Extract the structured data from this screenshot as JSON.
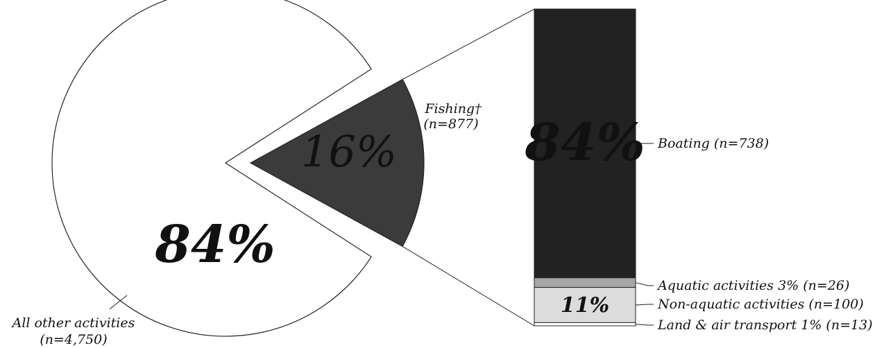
{
  "chart_data": [
    {
      "type": "pie",
      "slices": [
        {
          "label": "All other activities",
          "count_label": "(n=4,750)",
          "value": 84,
          "display": "84%",
          "color": "#ffffff"
        },
        {
          "label": "Fishing†",
          "count_label": "(n=877)",
          "value": 16,
          "display": "16%",
          "color": "#3b3b3b"
        }
      ]
    },
    {
      "type": "bar",
      "orientation": "stacked-vertical",
      "segments": [
        {
          "label": "Boating (n=738)",
          "value": 84,
          "display": "84%",
          "color": "#222222"
        },
        {
          "label": "Aquatic activities 3% (n=26)",
          "value": 3,
          "display": "",
          "color": "#a6a6a6"
        },
        {
          "label": "Non-aquatic activities (n=100)",
          "value": 11,
          "display": "11%",
          "color": "#dcdcdc"
        },
        {
          "label": "Land & air transport  1% (n=13)",
          "value": 1,
          "display": "",
          "color": "#ffffff"
        }
      ]
    }
  ]
}
